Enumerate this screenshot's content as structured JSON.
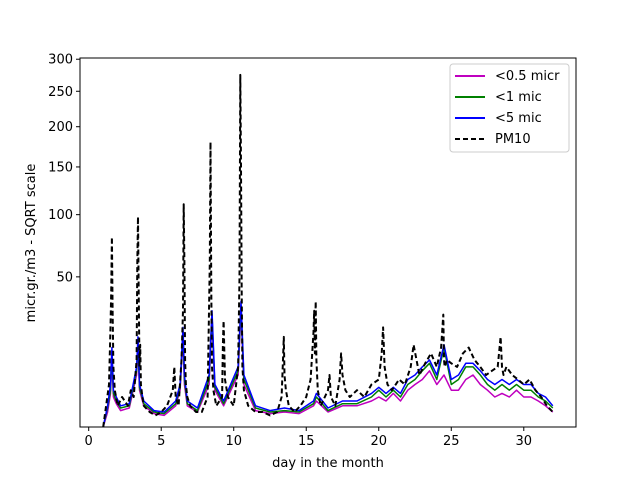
{
  "chart_data": {
    "type": "line",
    "title": "",
    "xlabel": "day in the month",
    "ylabel": "micr.gr./m3 - SQRT scale",
    "yscale": "sqrt",
    "xlim": [
      -0.6,
      33.6
    ],
    "ylim": [
      0,
      302
    ],
    "xticks": [
      0,
      5,
      10,
      15,
      20,
      25,
      30
    ],
    "xtick_labels": [
      "0",
      "5",
      "10",
      "15",
      "20",
      "25",
      "30"
    ],
    "yticks": [
      50,
      100,
      150,
      200,
      250,
      300
    ],
    "ytick_labels": [
      "50",
      "100",
      "150",
      "200",
      "250",
      "300"
    ],
    "grid": false,
    "legend_position": "top-right",
    "series": [
      {
        "name": "<0.5 micr",
        "color": "#bf00bf",
        "style": "solid",
        "x": [
          1.0,
          1.3,
          1.5,
          1.6,
          1.7,
          1.9,
          2.2,
          2.8,
          3.3,
          3.4,
          3.5,
          3.8,
          4.5,
          5.2,
          6.0,
          6.3,
          6.5,
          6.6,
          6.8,
          7.5,
          8.3,
          8.5,
          8.7,
          9.3,
          10.3,
          10.5,
          10.7,
          11.5,
          12.5,
          13.5,
          14.5,
          15.5,
          15.7,
          16.5,
          17.5,
          18.5,
          19.5,
          20.0,
          20.5,
          21.0,
          21.5,
          22.0,
          22.5,
          23.0,
          23.5,
          24.0,
          24.5,
          25.0,
          25.5,
          26.0,
          26.5,
          27.0,
          27.5,
          28.0,
          28.5,
          29.0,
          29.5,
          30.0,
          30.5,
          31.0,
          31.5,
          32.0
        ],
        "y": [
          0,
          0.5,
          2.5,
          10,
          2,
          1.2,
          0.6,
          0.8,
          6,
          14,
          3,
          1,
          0.4,
          0.3,
          1,
          3,
          18,
          4,
          1,
          0.5,
          4,
          26,
          3,
          1,
          6,
          30,
          4,
          0.6,
          0.4,
          0.5,
          0.4,
          1,
          1.5,
          0.5,
          1,
          1,
          1.5,
          2,
          1.5,
          2.5,
          1.5,
          3,
          4,
          5,
          7,
          4,
          6,
          3,
          3,
          5,
          6,
          4,
          3,
          2,
          2.5,
          2,
          3,
          2,
          2,
          1.5,
          1,
          0.5
        ]
      },
      {
        "name": "<1 mic",
        "color": "#008000",
        "style": "solid",
        "x": [
          1.0,
          1.3,
          1.5,
          1.6,
          1.7,
          1.9,
          2.2,
          2.8,
          3.3,
          3.4,
          3.5,
          3.8,
          4.5,
          5.2,
          6.0,
          6.3,
          6.5,
          6.6,
          6.8,
          7.5,
          8.3,
          8.5,
          8.7,
          9.3,
          10.3,
          10.5,
          10.7,
          11.5,
          12.5,
          13.5,
          14.5,
          15.5,
          15.7,
          16.5,
          17.5,
          18.5,
          19.5,
          20.0,
          20.5,
          21.0,
          21.5,
          22.0,
          22.5,
          23.0,
          23.5,
          24.0,
          24.5,
          25.0,
          25.5,
          26.0,
          26.5,
          27.0,
          27.5,
          28.0,
          28.5,
          29.0,
          29.5,
          30.0,
          30.5,
          31.0,
          31.5,
          32.0
        ],
        "y": [
          0,
          0.8,
          3,
          12,
          2.5,
          1.5,
          0.8,
          1,
          7,
          16,
          3.5,
          1.2,
          0.5,
          0.4,
          1.2,
          3.5,
          20,
          5,
          1.2,
          0.6,
          5,
          28,
          3.5,
          1.2,
          7,
          33,
          5,
          0.8,
          0.5,
          0.6,
          0.5,
          1.2,
          2,
          0.6,
          1.2,
          1.2,
          2,
          3,
          2,
          3,
          2,
          4,
          5,
          7,
          9,
          5,
          14,
          4,
          5,
          8,
          8,
          6,
          4,
          3,
          4,
          3,
          4,
          3,
          3,
          2,
          1.5,
          0.8
        ]
      },
      {
        "name": "<5 mic",
        "color": "#0000ff",
        "style": "solid",
        "x": [
          1.0,
          1.3,
          1.5,
          1.6,
          1.7,
          1.9,
          2.2,
          2.8,
          3.3,
          3.4,
          3.5,
          3.8,
          4.5,
          5.2,
          6.0,
          6.3,
          6.5,
          6.6,
          6.8,
          7.5,
          8.3,
          8.5,
          8.7,
          9.3,
          10.3,
          10.5,
          10.7,
          11.5,
          12.5,
          13.5,
          14.5,
          15.5,
          15.7,
          16.5,
          17.5,
          18.5,
          19.5,
          20.0,
          20.5,
          21.0,
          21.5,
          22.0,
          22.5,
          23.0,
          23.5,
          24.0,
          24.5,
          25.0,
          25.5,
          26.0,
          26.5,
          27.0,
          27.5,
          28.0,
          28.5,
          29.0,
          29.5,
          30.0,
          30.5,
          31.0,
          31.5,
          32.0
        ],
        "y": [
          0,
          1,
          4,
          14,
          3,
          2,
          1,
          1.2,
          8,
          18,
          4,
          1.5,
          0.6,
          0.5,
          1.5,
          4,
          22,
          6,
          1.5,
          0.8,
          6,
          30,
          4,
          1.5,
          8,
          35,
          6,
          1,
          0.6,
          0.8,
          0.6,
          1.5,
          2.5,
          0.8,
          1.5,
          1.5,
          2.5,
          3.5,
          2.5,
          3.5,
          2.5,
          5,
          6,
          8,
          10,
          6,
          15,
          5,
          6,
          9,
          9,
          7,
          5,
          4,
          5,
          4,
          5,
          4,
          4,
          2.5,
          2,
          1
        ]
      },
      {
        "name": "PM10",
        "color": "#000000",
        "style": "dashed",
        "x": [
          1.0,
          1.2,
          1.4,
          1.5,
          1.55,
          1.6,
          1.65,
          1.7,
          1.8,
          2.0,
          2.3,
          2.7,
          2.9,
          3.1,
          3.3,
          3.35,
          3.4,
          3.45,
          3.5,
          3.55,
          3.6,
          3.7,
          3.8,
          4.2,
          4.6,
          5.0,
          5.4,
          5.8,
          5.9,
          6.0,
          6.2,
          6.4,
          6.5,
          6.55,
          6.6,
          6.65,
          6.7,
          6.8,
          7.0,
          7.4,
          7.8,
          8.2,
          8.35,
          8.4,
          8.45,
          8.5,
          8.6,
          8.8,
          9.2,
          9.25,
          9.3,
          9.4,
          9.6,
          10.0,
          10.3,
          10.4,
          10.45,
          10.5,
          10.55,
          10.6,
          10.7,
          11.0,
          11.5,
          12.0,
          12.5,
          13.0,
          13.3,
          13.4,
          13.45,
          13.5,
          13.6,
          13.8,
          14.2,
          14.6,
          15.0,
          15.3,
          15.5,
          15.55,
          15.6,
          15.65,
          15.7,
          15.8,
          16.0,
          16.5,
          16.6,
          16.7,
          17.0,
          17.3,
          17.4,
          17.5,
          17.7,
          18.0,
          18.5,
          19.0,
          19.5,
          20.0,
          20.2,
          20.3,
          20.4,
          20.6,
          20.9,
          21.4,
          21.8,
          22.2,
          22.4,
          22.6,
          22.8,
          23.2,
          23.6,
          24.0,
          24.3,
          24.45,
          24.5,
          24.55,
          24.7,
          25.0,
          25.4,
          25.8,
          26.2,
          26.6,
          27.0,
          27.4,
          27.8,
          28.2,
          28.4,
          28.5,
          28.6,
          28.8,
          29.2,
          29.6,
          30.0,
          30.4,
          30.8,
          31.2,
          31.6,
          32.0
        ],
        "y": [
          0,
          1,
          4,
          22,
          40,
          80,
          30,
          8,
          3,
          1,
          2,
          1,
          3,
          2,
          10,
          60,
          98,
          40,
          8,
          15,
          4,
          2,
          1,
          0.5,
          0.3,
          0.5,
          1,
          3,
          8,
          2,
          1,
          10,
          30,
          110,
          60,
          10,
          4,
          2,
          1,
          0.5,
          0.5,
          2,
          60,
          180,
          40,
          8,
          3,
          1,
          2,
          15,
          25,
          5,
          2,
          1,
          8,
          50,
          275,
          150,
          40,
          8,
          3,
          1,
          0.5,
          0.5,
          0.3,
          0.5,
          2,
          10,
          18,
          6,
          3,
          1,
          0.5,
          1,
          2,
          5,
          20,
          30,
          12,
          35,
          10,
          3,
          1,
          3,
          6,
          2,
          1,
          5,
          12,
          6,
          3,
          2,
          3,
          2,
          4,
          5,
          12,
          22,
          8,
          4,
          3,
          5,
          4,
          8,
          15,
          10,
          6,
          9,
          12,
          8,
          14,
          28,
          10,
          8,
          10,
          9,
          8,
          12,
          14,
          10,
          8,
          6,
          7,
          8,
          18,
          8,
          6,
          8,
          6,
          5,
          4,
          5,
          3,
          2,
          1,
          0.5
        ]
      }
    ]
  }
}
